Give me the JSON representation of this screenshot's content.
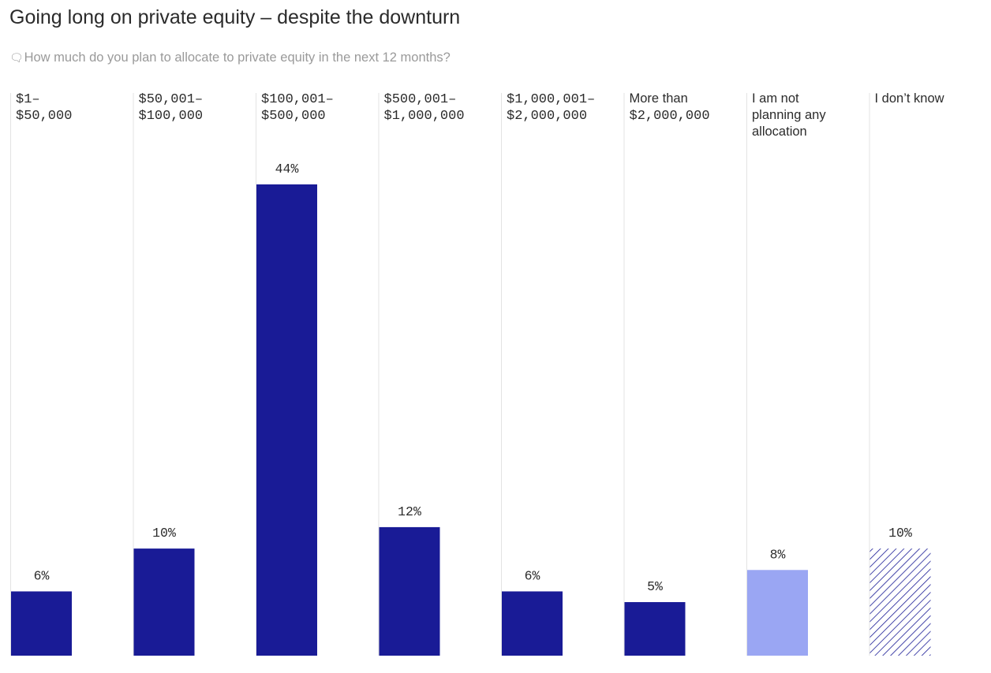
{
  "header": {
    "title": "Going long on private equity – despite the downturn",
    "question_icon": "question-icon",
    "subtitle": "How much do you plan to allocate to private equity in the next 12 months?"
  },
  "colors": {
    "bar_primary": "#191b96",
    "bar_light": "#9aa6f3",
    "hatch_line": "#191b96",
    "gridline": "#e3e3e3",
    "text_dark": "#2b2b2b",
    "text_muted": "#9a9a9a"
  },
  "chart_data": {
    "type": "bar",
    "title": "Going long on private equity – despite the downturn",
    "subtitle": "How much do you plan to allocate to private equity in the next 12 months?",
    "unit": "%",
    "ylim": [
      0,
      44
    ],
    "grid": "vertical separators",
    "legend": "none",
    "categories": [
      {
        "label": [
          "$1–",
          "$50,000"
        ],
        "font": "mono",
        "value": 6,
        "value_label": "6%",
        "style": "solid"
      },
      {
        "label": [
          "$50,001–",
          "$100,000"
        ],
        "font": "mono",
        "value": 10,
        "value_label": "10%",
        "style": "solid"
      },
      {
        "label": [
          "$100,001–",
          "$500,000"
        ],
        "font": "mono",
        "value": 44,
        "value_label": "44%",
        "style": "solid"
      },
      {
        "label": [
          "$500,001–",
          "$1,000,000"
        ],
        "font": "mono",
        "value": 12,
        "value_label": "12%",
        "style": "solid"
      },
      {
        "label": [
          "$1,000,001–",
          "$2,000,000"
        ],
        "font": "mono",
        "value": 6,
        "value_label": "6%",
        "style": "solid"
      },
      {
        "label": [
          "More than",
          "$2,000,000"
        ],
        "font": "mixed",
        "value": 5,
        "value_label": "5%",
        "style": "solid"
      },
      {
        "label": [
          "I am not",
          "planning any",
          "allocation"
        ],
        "font": "sans",
        "value": 8,
        "value_label": "8%",
        "style": "light"
      },
      {
        "label": [
          "I don’t know"
        ],
        "font": "sans",
        "value": 10,
        "value_label": "10%",
        "style": "hatched"
      }
    ]
  }
}
